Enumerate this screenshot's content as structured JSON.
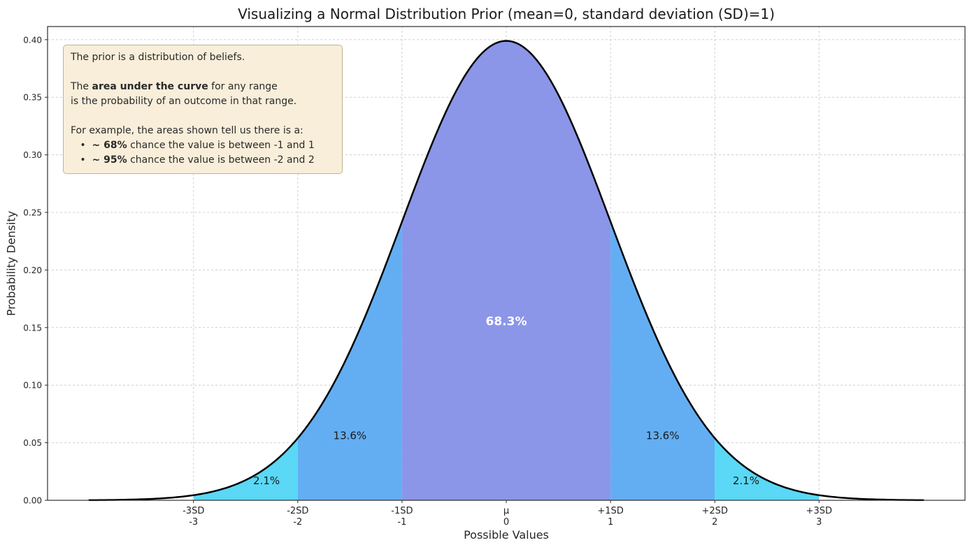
{
  "chart_data": {
    "type": "area",
    "title": "Visualizing a Normal Distribution Prior (mean=0, standard deviation (SD)=1)",
    "xlabel": "Possible Values",
    "ylabel": "Probability Density",
    "xlim": [
      -4.4,
      4.4
    ],
    "ylim": [
      0,
      0.4114
    ],
    "grid": true,
    "curve": {
      "distribution": "normal",
      "mean": 0,
      "sd": 1,
      "range": [
        -4,
        4
      ],
      "color": "#000000",
      "peak_density": 0.3989
    },
    "yticks": [
      {
        "v": 0.0,
        "label": "0.00"
      },
      {
        "v": 0.05,
        "label": "0.05"
      },
      {
        "v": 0.1,
        "label": "0.10"
      },
      {
        "v": 0.15,
        "label": "0.15"
      },
      {
        "v": 0.2,
        "label": "0.20"
      },
      {
        "v": 0.25,
        "label": "0.25"
      },
      {
        "v": 0.3,
        "label": "0.30"
      },
      {
        "v": 0.35,
        "label": "0.35"
      },
      {
        "v": 0.4,
        "label": "0.40"
      }
    ],
    "xticks": [
      {
        "v": -3,
        "line1": "-3SD",
        "line2": "-3"
      },
      {
        "v": -2,
        "line1": "-2SD",
        "line2": "-2"
      },
      {
        "v": -1,
        "line1": "-1SD",
        "line2": "-1"
      },
      {
        "v": 0,
        "line1": "μ",
        "line2": "0"
      },
      {
        "v": 1,
        "line1": "+1SD",
        "line2": "1"
      },
      {
        "v": 2,
        "line1": "+2SD",
        "line2": "2"
      },
      {
        "v": 3,
        "line1": "+3SD",
        "line2": "3"
      }
    ],
    "regions": [
      {
        "from": -3,
        "to": -2,
        "probability": "2.1%",
        "color": "#5ad8f6",
        "label": {
          "x": -2.3,
          "y": 0.014,
          "color": "#1a1a1a",
          "bold": false,
          "size": 15
        }
      },
      {
        "from": -2,
        "to": -1,
        "probability": "13.6%",
        "color": "#63aef3",
        "label": {
          "x": -1.5,
          "y": 0.053,
          "color": "#1a1a1a",
          "bold": false,
          "size": 15
        }
      },
      {
        "from": -1,
        "to": 1,
        "probability": "68.3%",
        "color": "#8b96e8",
        "label": {
          "x": 0,
          "y": 0.152,
          "color": "#ffffff",
          "bold": true,
          "size": 17
        }
      },
      {
        "from": 1,
        "to": 2,
        "probability": "13.6%",
        "color": "#63aef3",
        "label": {
          "x": 1.5,
          "y": 0.053,
          "color": "#1a1a1a",
          "bold": false,
          "size": 15
        }
      },
      {
        "from": 2,
        "to": 3,
        "probability": "2.1%",
        "color": "#5ad8f6",
        "label": {
          "x": 2.3,
          "y": 0.014,
          "color": "#1a1a1a",
          "bold": false,
          "size": 15
        }
      }
    ],
    "annotation": {
      "bg": "#f8eeda",
      "border": "#c3b393",
      "lines": [
        [
          {
            "t": "The prior is a distribution of beliefs."
          }
        ],
        [],
        [
          {
            "t": "The "
          },
          {
            "t": "area under the curve",
            "b": true
          },
          {
            "t": " for any range"
          }
        ],
        [
          {
            "t": "is the probability of an outcome in that range."
          }
        ],
        [],
        [
          {
            "t": "For example, the areas shown tell us there is a:"
          }
        ],
        [
          {
            "t": "   •  "
          },
          {
            "t": "~ 68%",
            "b": true
          },
          {
            "t": " chance the value is between -1 and 1"
          }
        ],
        [
          {
            "t": "   •  "
          },
          {
            "t": "~ 95%",
            "b": true
          },
          {
            "t": " chance the value is between -2 and 2"
          }
        ]
      ]
    },
    "colors": {
      "grid": "#cfcfcf",
      "frame": "#2e2e2e",
      "tick_text": "#262626"
    }
  }
}
